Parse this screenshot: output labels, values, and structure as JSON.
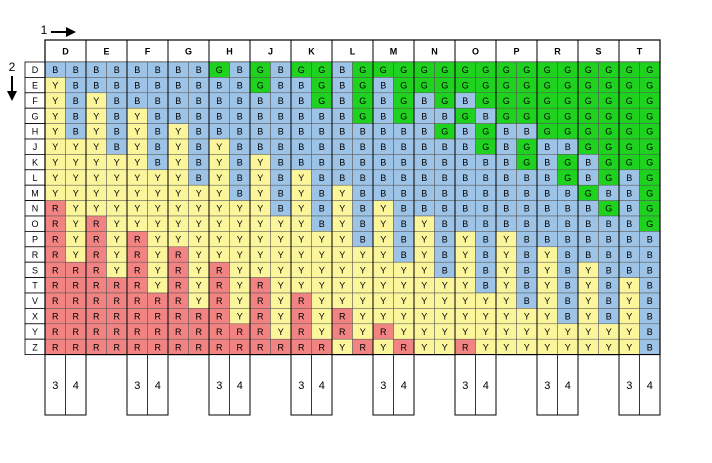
{
  "axis_labels": {
    "x": "1",
    "y": "2"
  },
  "cell_colors": {
    "B": "#9dc3e6",
    "G": "#1fd21f",
    "Y": "#fbf59b",
    "R": "#f28383"
  },
  "columns": [
    "D",
    "E",
    "F",
    "G",
    "H",
    "J",
    "K",
    "L",
    "M",
    "N",
    "O",
    "P",
    "R",
    "S",
    "T"
  ],
  "footer_labels": [
    "3",
    "4"
  ],
  "rows": [
    {
      "label": "D",
      "cells": [
        "B",
        "B",
        "B",
        "B",
        "B",
        "B",
        "B",
        "B",
        "G",
        "B",
        "G",
        "B",
        "G",
        "G",
        "B",
        "G",
        "G",
        "G",
        "G",
        "G",
        "G",
        "G",
        "G",
        "G",
        "G",
        "G",
        "G",
        "G",
        "G",
        "G"
      ]
    },
    {
      "label": "E",
      "cells": [
        "Y",
        "B",
        "B",
        "B",
        "B",
        "B",
        "B",
        "B",
        "B",
        "B",
        "G",
        "B",
        "B",
        "G",
        "B",
        "G",
        "B",
        "G",
        "G",
        "G",
        "G",
        "G",
        "G",
        "G",
        "G",
        "G",
        "G",
        "G",
        "G",
        "G"
      ]
    },
    {
      "label": "F",
      "cells": [
        "Y",
        "B",
        "Y",
        "B",
        "B",
        "B",
        "B",
        "B",
        "B",
        "B",
        "B",
        "B",
        "B",
        "G",
        "B",
        "G",
        "B",
        "G",
        "B",
        "G",
        "B",
        "G",
        "G",
        "G",
        "G",
        "G",
        "G",
        "G",
        "G",
        "G"
      ]
    },
    {
      "label": "G",
      "cells": [
        "Y",
        "B",
        "Y",
        "B",
        "Y",
        "B",
        "B",
        "B",
        "B",
        "B",
        "B",
        "B",
        "B",
        "B",
        "B",
        "G",
        "B",
        "G",
        "B",
        "B",
        "G",
        "B",
        "G",
        "G",
        "G",
        "G",
        "G",
        "G",
        "G",
        "G"
      ]
    },
    {
      "label": "H",
      "cells": [
        "Y",
        "B",
        "Y",
        "B",
        "Y",
        "B",
        "Y",
        "B",
        "B",
        "B",
        "B",
        "B",
        "B",
        "B",
        "B",
        "B",
        "B",
        "B",
        "B",
        "G",
        "B",
        "G",
        "B",
        "B",
        "G",
        "G",
        "G",
        "G",
        "G",
        "G"
      ]
    },
    {
      "label": "J",
      "cells": [
        "Y",
        "Y",
        "Y",
        "B",
        "Y",
        "B",
        "Y",
        "B",
        "Y",
        "B",
        "B",
        "B",
        "B",
        "B",
        "B",
        "B",
        "B",
        "B",
        "B",
        "B",
        "B",
        "G",
        "B",
        "G",
        "B",
        "B",
        "G",
        "G",
        "G",
        "G"
      ]
    },
    {
      "label": "K",
      "cells": [
        "Y",
        "Y",
        "Y",
        "Y",
        "Y",
        "B",
        "Y",
        "B",
        "Y",
        "B",
        "Y",
        "B",
        "B",
        "B",
        "B",
        "B",
        "B",
        "B",
        "B",
        "B",
        "B",
        "B",
        "B",
        "G",
        "B",
        "G",
        "B",
        "G",
        "G",
        "G"
      ]
    },
    {
      "label": "L",
      "cells": [
        "Y",
        "Y",
        "Y",
        "Y",
        "Y",
        "Y",
        "Y",
        "B",
        "Y",
        "B",
        "Y",
        "B",
        "Y",
        "B",
        "B",
        "B",
        "B",
        "B",
        "B",
        "B",
        "B",
        "B",
        "B",
        "B",
        "B",
        "G",
        "B",
        "G",
        "B",
        "G"
      ]
    },
    {
      "label": "M",
      "cells": [
        "Y",
        "Y",
        "Y",
        "Y",
        "Y",
        "Y",
        "Y",
        "Y",
        "Y",
        "B",
        "Y",
        "B",
        "Y",
        "B",
        "Y",
        "B",
        "B",
        "B",
        "B",
        "B",
        "B",
        "B",
        "B",
        "B",
        "B",
        "B",
        "G",
        "B",
        "B",
        "G"
      ]
    },
    {
      "label": "N",
      "cells": [
        "R",
        "Y",
        "Y",
        "Y",
        "Y",
        "Y",
        "Y",
        "Y",
        "Y",
        "Y",
        "Y",
        "B",
        "Y",
        "B",
        "Y",
        "B",
        "Y",
        "B",
        "B",
        "B",
        "B",
        "B",
        "B",
        "B",
        "B",
        "B",
        "B",
        "G",
        "B",
        "G"
      ]
    },
    {
      "label": "O",
      "cells": [
        "R",
        "Y",
        "R",
        "Y",
        "Y",
        "Y",
        "Y",
        "Y",
        "Y",
        "Y",
        "Y",
        "Y",
        "Y",
        "B",
        "Y",
        "B",
        "Y",
        "B",
        "Y",
        "B",
        "B",
        "B",
        "B",
        "B",
        "B",
        "B",
        "B",
        "B",
        "B",
        "G"
      ]
    },
    {
      "label": "P",
      "cells": [
        "R",
        "Y",
        "R",
        "Y",
        "R",
        "Y",
        "Y",
        "Y",
        "Y",
        "Y",
        "Y",
        "Y",
        "Y",
        "Y",
        "Y",
        "B",
        "Y",
        "B",
        "Y",
        "B",
        "Y",
        "B",
        "Y",
        "B",
        "B",
        "B",
        "B",
        "B",
        "B",
        "B"
      ]
    },
    {
      "label": "R",
      "cells": [
        "R",
        "Y",
        "R",
        "Y",
        "R",
        "Y",
        "R",
        "Y",
        "Y",
        "Y",
        "Y",
        "Y",
        "Y",
        "Y",
        "Y",
        "Y",
        "Y",
        "B",
        "Y",
        "B",
        "Y",
        "B",
        "Y",
        "B",
        "Y",
        "B",
        "B",
        "B",
        "B",
        "B"
      ]
    },
    {
      "label": "S",
      "cells": [
        "R",
        "R",
        "R",
        "Y",
        "R",
        "Y",
        "R",
        "Y",
        "R",
        "Y",
        "Y",
        "Y",
        "Y",
        "Y",
        "Y",
        "Y",
        "Y",
        "Y",
        "Y",
        "B",
        "Y",
        "B",
        "Y",
        "B",
        "Y",
        "B",
        "Y",
        "B",
        "B",
        "B"
      ]
    },
    {
      "label": "T",
      "cells": [
        "R",
        "R",
        "R",
        "R",
        "R",
        "Y",
        "R",
        "Y",
        "R",
        "Y",
        "R",
        "Y",
        "Y",
        "Y",
        "Y",
        "Y",
        "Y",
        "Y",
        "Y",
        "Y",
        "Y",
        "B",
        "Y",
        "B",
        "Y",
        "B",
        "Y",
        "B",
        "Y",
        "B"
      ]
    },
    {
      "label": "V",
      "cells": [
        "R",
        "R",
        "R",
        "R",
        "R",
        "R",
        "R",
        "Y",
        "R",
        "Y",
        "R",
        "Y",
        "R",
        "Y",
        "Y",
        "Y",
        "Y",
        "Y",
        "Y",
        "Y",
        "Y",
        "Y",
        "Y",
        "B",
        "Y",
        "B",
        "Y",
        "B",
        "Y",
        "B"
      ]
    },
    {
      "label": "X",
      "cells": [
        "R",
        "R",
        "R",
        "R",
        "R",
        "R",
        "R",
        "R",
        "R",
        "Y",
        "R",
        "Y",
        "R",
        "Y",
        "R",
        "Y",
        "Y",
        "Y",
        "Y",
        "Y",
        "Y",
        "Y",
        "Y",
        "Y",
        "Y",
        "B",
        "Y",
        "B",
        "Y",
        "B"
      ]
    },
    {
      "label": "Y",
      "cells": [
        "R",
        "R",
        "R",
        "R",
        "R",
        "R",
        "R",
        "R",
        "R",
        "R",
        "R",
        "Y",
        "R",
        "Y",
        "R",
        "Y",
        "R",
        "Y",
        "Y",
        "Y",
        "Y",
        "Y",
        "Y",
        "Y",
        "Y",
        "Y",
        "Y",
        "Y",
        "Y",
        "B"
      ]
    },
    {
      "label": "Z",
      "cells": [
        "R",
        "R",
        "R",
        "R",
        "R",
        "R",
        "R",
        "R",
        "R",
        "R",
        "R",
        "R",
        "R",
        "R",
        "Y",
        "R",
        "Y",
        "R",
        "Y",
        "Y",
        "R",
        "Y",
        "Y",
        "Y",
        "Y",
        "Y",
        "Y",
        "Y",
        "Y",
        "B"
      ]
    }
  ]
}
